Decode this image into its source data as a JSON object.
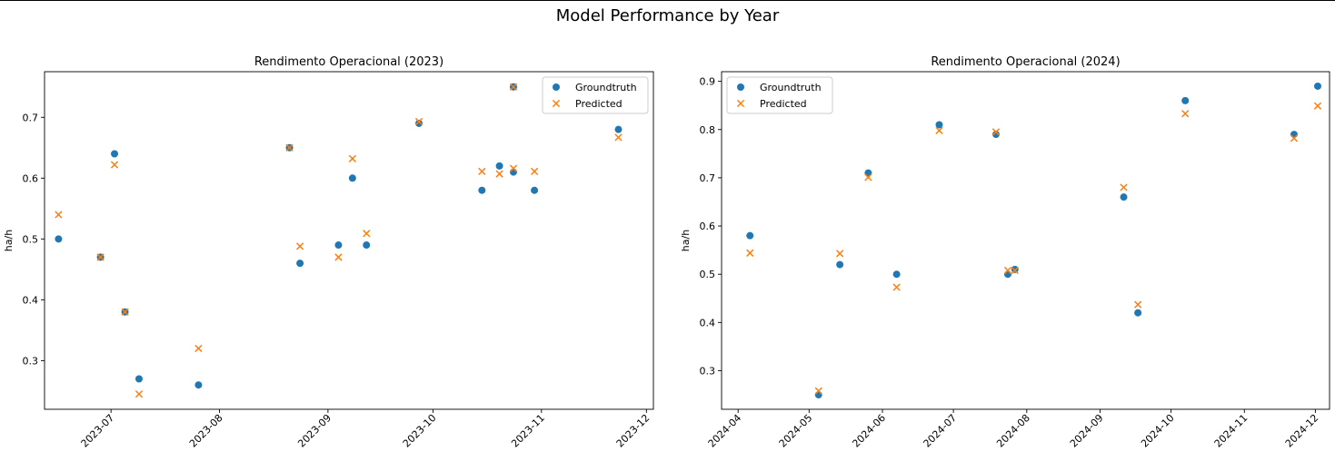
{
  "figure": {
    "title": "Model Performance by Year",
    "colors": {
      "groundtruth": "#1f77b4",
      "predicted": "#ff7f0e"
    }
  },
  "chart_data": [
    {
      "type": "scatter",
      "title": "Rendimento Operacional (2023)",
      "xlabel": "",
      "ylabel": "ha/h",
      "x_type": "date",
      "xlim": [
        "2023-06-12",
        "2023-12-03"
      ],
      "ylim": [
        0.22,
        0.775
      ],
      "xticks": [
        "2023-07-01",
        "2023-08-01",
        "2023-09-01",
        "2023-10-01",
        "2023-11-01",
        "2023-12-01"
      ],
      "xtick_labels": [
        "2023-07",
        "2023-08",
        "2023-09",
        "2023-10",
        "2023-11",
        "2023-12"
      ],
      "yticks": [
        0.3,
        0.4,
        0.5,
        0.6,
        0.7
      ],
      "ytick_labels": [
        "0.3",
        "0.4",
        "0.5",
        "0.6",
        "0.7"
      ],
      "grid": false,
      "legend_position": "top-right",
      "series": [
        {
          "name": "Groundtruth",
          "marker": "circle",
          "color": "#1f77b4",
          "points": [
            {
              "x": "2023-06-16",
              "y": 0.5
            },
            {
              "x": "2023-06-28",
              "y": 0.47
            },
            {
              "x": "2023-07-02",
              "y": 0.64
            },
            {
              "x": "2023-07-05",
              "y": 0.38
            },
            {
              "x": "2023-07-09",
              "y": 0.27
            },
            {
              "x": "2023-07-26",
              "y": 0.26
            },
            {
              "x": "2023-08-21",
              "y": 0.65
            },
            {
              "x": "2023-08-24",
              "y": 0.46
            },
            {
              "x": "2023-09-04",
              "y": 0.49
            },
            {
              "x": "2023-09-08",
              "y": 0.6
            },
            {
              "x": "2023-09-12",
              "y": 0.49
            },
            {
              "x": "2023-09-27",
              "y": 0.69
            },
            {
              "x": "2023-10-15",
              "y": 0.58
            },
            {
              "x": "2023-10-20",
              "y": 0.62
            },
            {
              "x": "2023-10-24",
              "y": 0.61
            },
            {
              "x": "2023-10-24",
              "y": 0.75
            },
            {
              "x": "2023-10-30",
              "y": 0.58
            },
            {
              "x": "2023-11-23",
              "y": 0.68
            }
          ]
        },
        {
          "name": "Predicted",
          "marker": "x",
          "color": "#ff7f0e",
          "points": [
            {
              "x": "2023-06-16",
              "y": 0.54
            },
            {
              "x": "2023-06-28",
              "y": 0.47
            },
            {
              "x": "2023-07-02",
              "y": 0.622
            },
            {
              "x": "2023-07-05",
              "y": 0.38
            },
            {
              "x": "2023-07-09",
              "y": 0.245
            },
            {
              "x": "2023-07-26",
              "y": 0.32
            },
            {
              "x": "2023-08-21",
              "y": 0.65
            },
            {
              "x": "2023-08-24",
              "y": 0.488
            },
            {
              "x": "2023-09-04",
              "y": 0.47
            },
            {
              "x": "2023-09-08",
              "y": 0.632
            },
            {
              "x": "2023-09-12",
              "y": 0.509
            },
            {
              "x": "2023-09-27",
              "y": 0.693
            },
            {
              "x": "2023-10-15",
              "y": 0.611
            },
            {
              "x": "2023-10-20",
              "y": 0.607
            },
            {
              "x": "2023-10-24",
              "y": 0.616
            },
            {
              "x": "2023-10-24",
              "y": 0.75
            },
            {
              "x": "2023-10-30",
              "y": 0.611
            },
            {
              "x": "2023-11-23",
              "y": 0.667
            }
          ]
        }
      ]
    },
    {
      "type": "scatter",
      "title": "Rendimento Operacional (2024)",
      "xlabel": "",
      "ylabel": "ha/h",
      "x_type": "date",
      "xlim": [
        "2024-03-25",
        "2024-12-07"
      ],
      "ylim": [
        0.22,
        0.92
      ],
      "xticks": [
        "2024-04-01",
        "2024-05-01",
        "2024-06-01",
        "2024-07-01",
        "2024-08-01",
        "2024-09-01",
        "2024-10-01",
        "2024-11-01",
        "2024-12-01"
      ],
      "xtick_labels": [
        "2024-04",
        "2024-05",
        "2024-06",
        "2024-07",
        "2024-08",
        "2024-09",
        "2024-10",
        "2024-11",
        "2024-12"
      ],
      "yticks": [
        0.3,
        0.4,
        0.5,
        0.6,
        0.7,
        0.8,
        0.9
      ],
      "ytick_labels": [
        "0.3",
        "0.4",
        "0.5",
        "0.6",
        "0.7",
        "0.8",
        "0.9"
      ],
      "grid": false,
      "legend_position": "top-left",
      "series": [
        {
          "name": "Groundtruth",
          "marker": "circle",
          "color": "#1f77b4",
          "points": [
            {
              "x": "2024-04-06",
              "y": 0.58
            },
            {
              "x": "2024-05-05",
              "y": 0.25
            },
            {
              "x": "2024-05-14",
              "y": 0.52
            },
            {
              "x": "2024-05-26",
              "y": 0.71
            },
            {
              "x": "2024-06-07",
              "y": 0.5
            },
            {
              "x": "2024-06-25",
              "y": 0.81
            },
            {
              "x": "2024-07-19",
              "y": 0.79
            },
            {
              "x": "2024-07-24",
              "y": 0.5
            },
            {
              "x": "2024-07-27",
              "y": 0.51
            },
            {
              "x": "2024-09-11",
              "y": 0.66
            },
            {
              "x": "2024-09-17",
              "y": 0.42
            },
            {
              "x": "2024-10-07",
              "y": 0.86
            },
            {
              "x": "2024-11-22",
              "y": 0.79
            },
            {
              "x": "2024-12-02",
              "y": 0.89
            }
          ]
        },
        {
          "name": "Predicted",
          "marker": "x",
          "color": "#ff7f0e",
          "points": [
            {
              "x": "2024-04-06",
              "y": 0.544
            },
            {
              "x": "2024-05-05",
              "y": 0.258
            },
            {
              "x": "2024-05-14",
              "y": 0.543
            },
            {
              "x": "2024-05-26",
              "y": 0.701
            },
            {
              "x": "2024-06-07",
              "y": 0.473
            },
            {
              "x": "2024-06-25",
              "y": 0.798
            },
            {
              "x": "2024-07-19",
              "y": 0.795
            },
            {
              "x": "2024-07-24",
              "y": 0.508
            },
            {
              "x": "2024-07-27",
              "y": 0.508
            },
            {
              "x": "2024-09-11",
              "y": 0.68
            },
            {
              "x": "2024-09-17",
              "y": 0.437
            },
            {
              "x": "2024-10-07",
              "y": 0.833
            },
            {
              "x": "2024-11-22",
              "y": 0.782
            },
            {
              "x": "2024-12-02",
              "y": 0.849
            }
          ]
        }
      ]
    }
  ]
}
